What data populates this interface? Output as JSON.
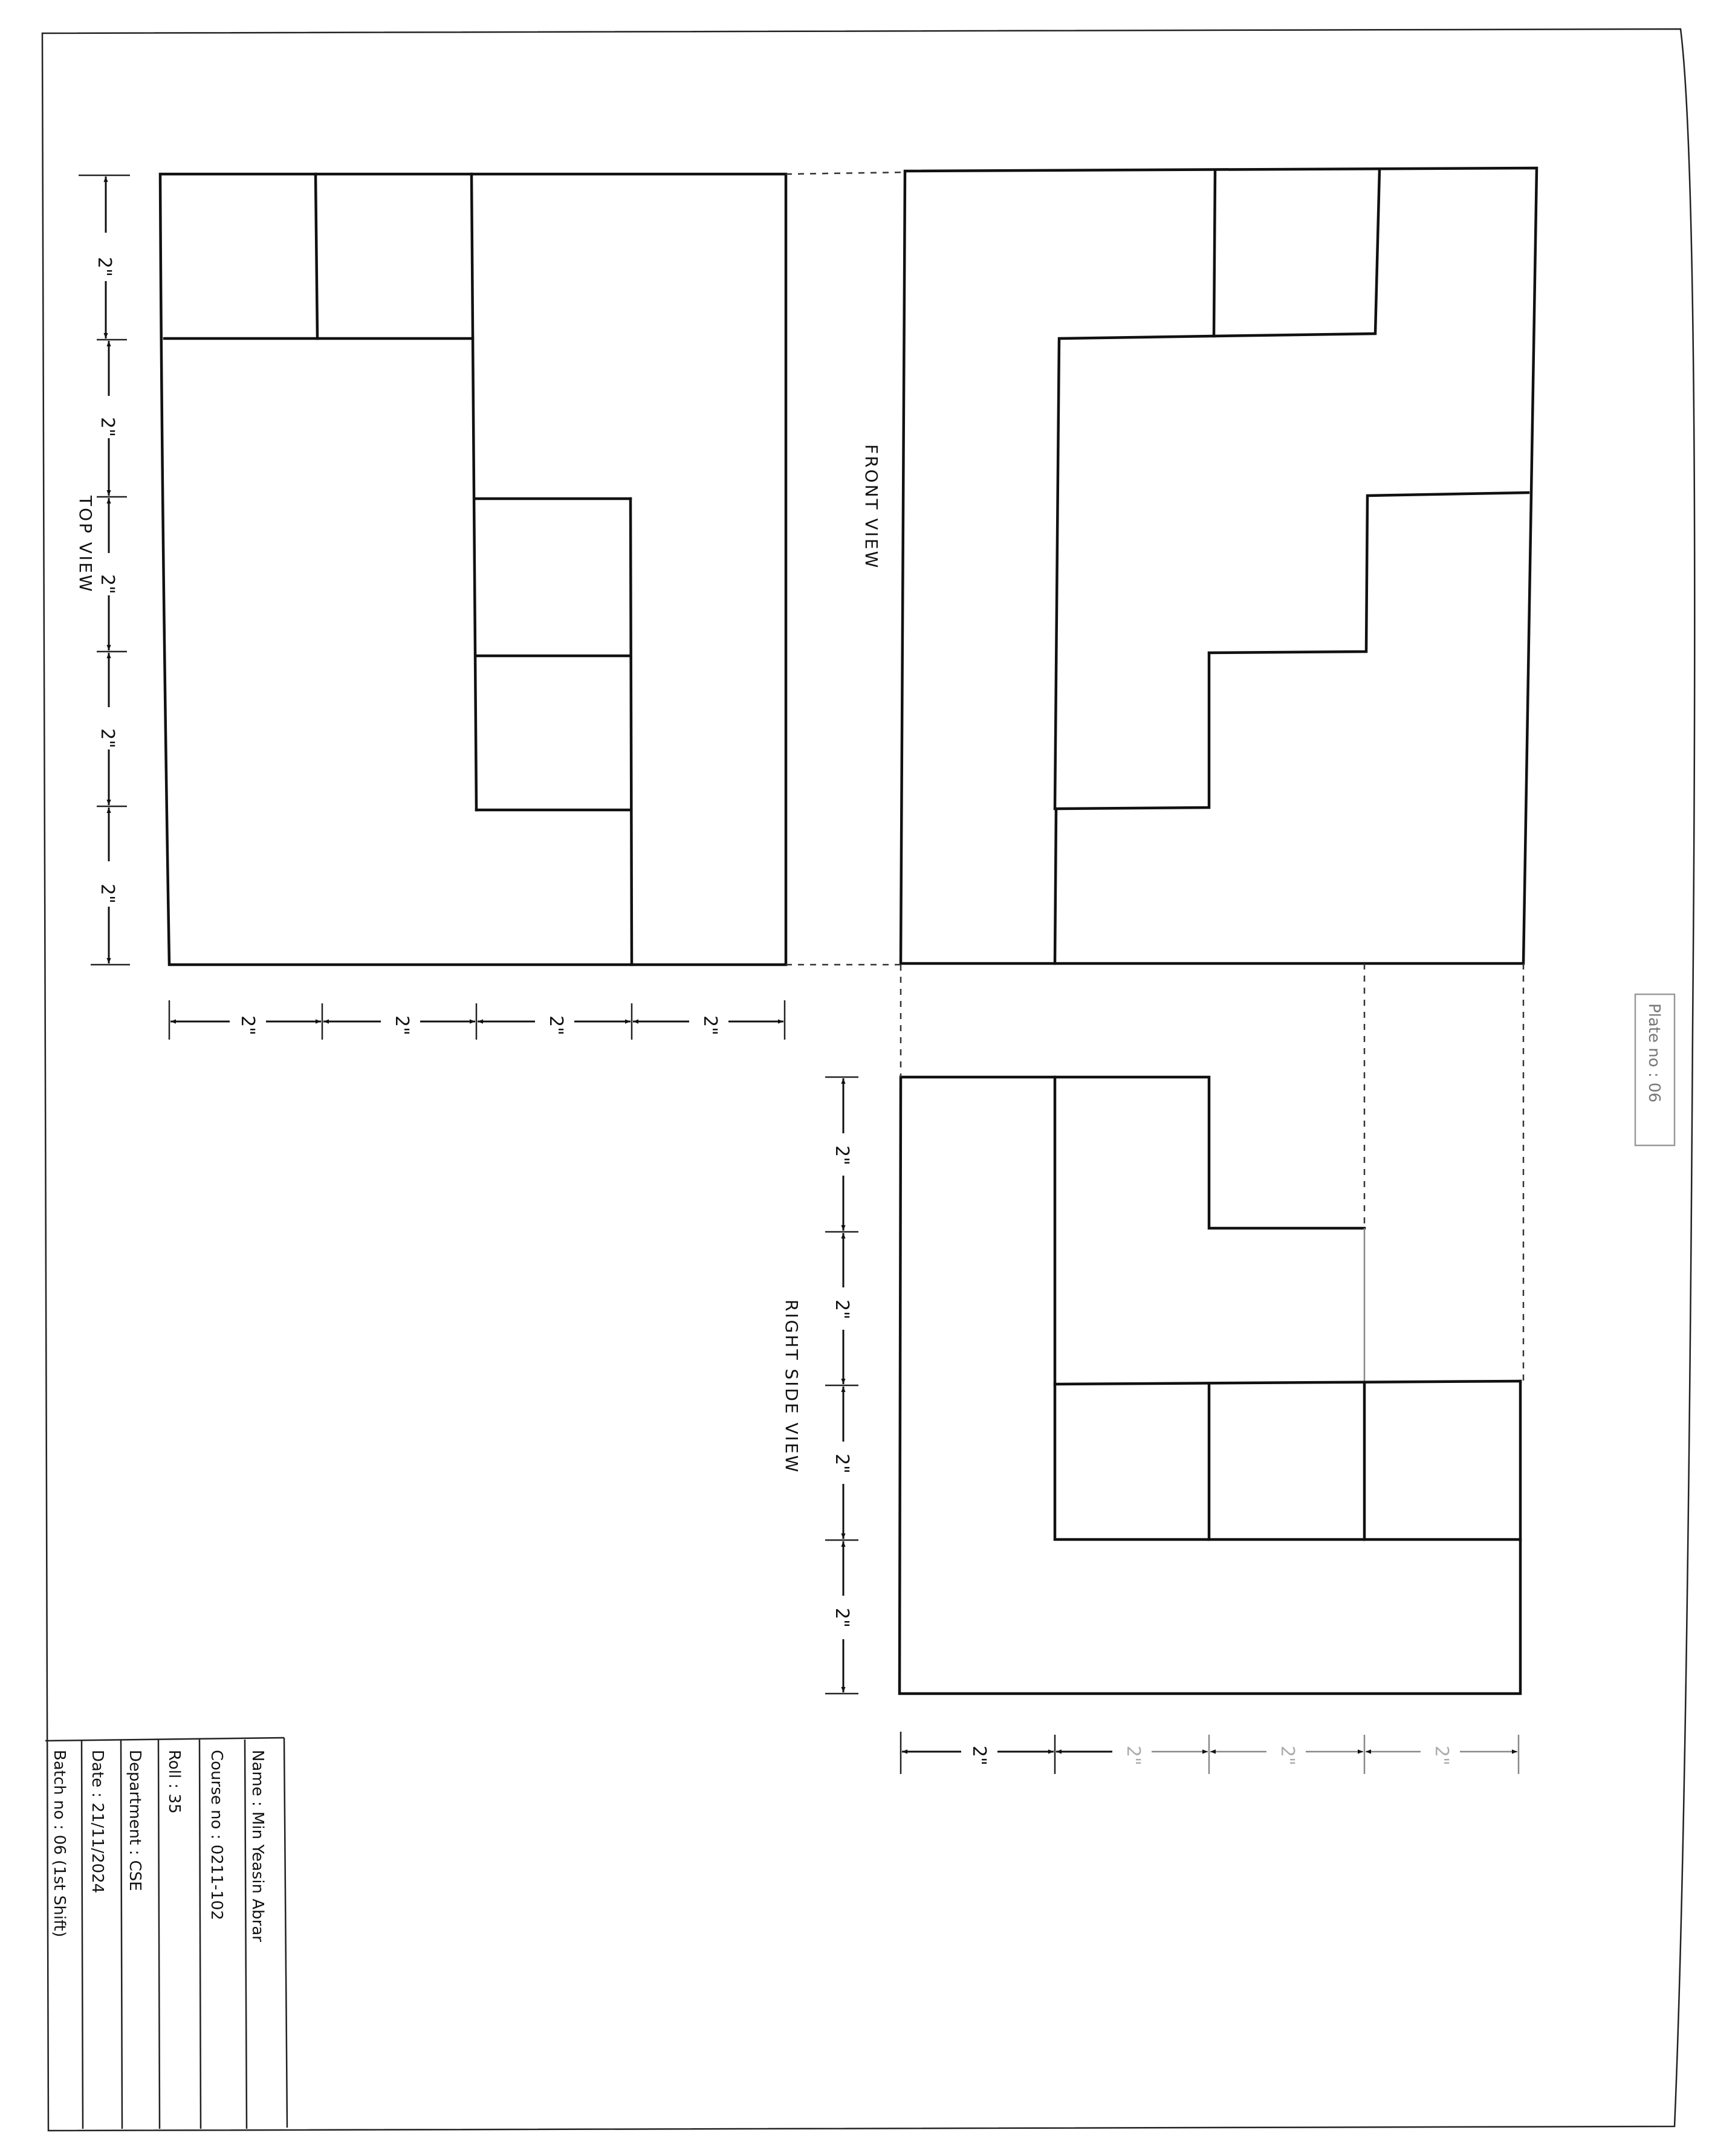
{
  "views": {
    "top": "TOP VIEW",
    "front": "FRONT VIEW",
    "right_side": "RIGHT SIDE VIEW"
  },
  "dimension_label": "2\"",
  "plate": "Plate no : 06",
  "title_block": {
    "name": "Name : Min Yeasin Abrar",
    "course": "Course no : 0211-102",
    "roll": "Roll : 35",
    "department": "Department : CSE",
    "date": "Date : 21/11/2024",
    "batch": "Batch no : 06 (1st Shift)"
  }
}
